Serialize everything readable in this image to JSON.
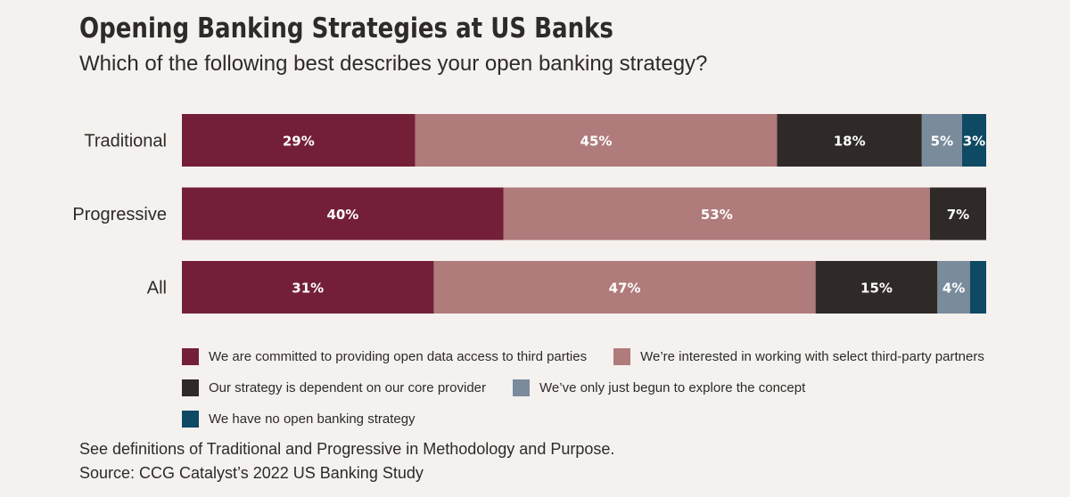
{
  "title": "Opening Banking Strategies at US Banks",
  "subtitle": "Which of the following best describes your open banking strategy?",
  "footnotes": {
    "definitions": "See definitions of Traditional and Progressive in Methodology and Purpose.",
    "source": "Source: CCG Catalyst’s 2022 US Banking Study"
  },
  "chart_data": {
    "type": "bar",
    "orientation": "horizontal",
    "stacked": true,
    "normalized_to_percent": true,
    "categories": [
      "Traditional",
      "Progressive",
      "All"
    ],
    "series": [
      {
        "name": "We are committed to providing open data access to third parties",
        "color": "#741f38",
        "values": [
          29,
          40,
          31
        ],
        "labels": [
          "29%",
          "40%",
          "31%"
        ]
      },
      {
        "name": "We’re interested in working with select third-party partners",
        "color": "#b07b7b",
        "values": [
          45,
          53,
          47
        ],
        "labels": [
          "45%",
          "53%",
          "47%"
        ]
      },
      {
        "name": "Our strategy is dependent on our core provider",
        "color": "#2f2a28",
        "values": [
          18,
          7,
          15
        ],
        "labels": [
          "18%",
          "7%",
          "15%"
        ]
      },
      {
        "name": "We’ve only just begun to explore the concept",
        "color": "#7a8b9c",
        "values": [
          5,
          0,
          4
        ],
        "labels": [
          "5%",
          "",
          "4%"
        ]
      },
      {
        "name": "We have no open banking strategy",
        "color": "#0e4a63",
        "values": [
          3,
          0,
          2
        ],
        "labels": [
          "3%",
          "",
          ""
        ]
      }
    ],
    "xlim": [
      0,
      100
    ],
    "grid": false,
    "legend_position": "bottom"
  }
}
